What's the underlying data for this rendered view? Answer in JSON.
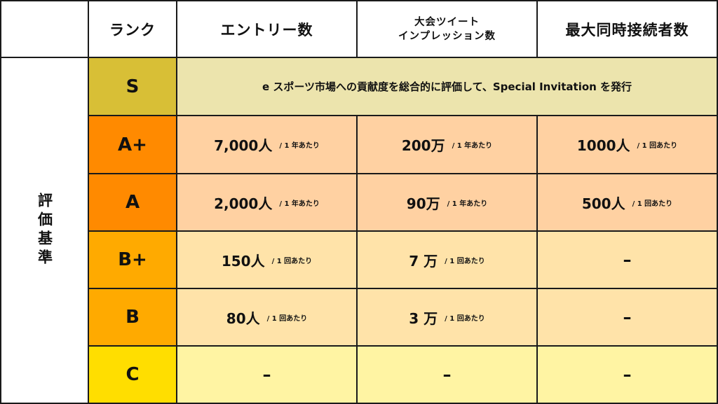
{
  "header": {
    "rank": "ランク",
    "entries": "エントリー数",
    "tweet_line1": "大会ツイート",
    "tweet_line2": "インプレッション数",
    "concurrent": "最大同時接続者数"
  },
  "side_label": "評価基準",
  "colors": {
    "s_rank": "#d8bf36",
    "s_desc": "#ece4ad",
    "a_rank": "#ff8a00",
    "a_cell": "#ffd1a2",
    "b_rank": "#ffaa00",
    "b_cell": "#ffe3a9",
    "c_rank": "#ffde00",
    "c_cell": "#fff4a3",
    "border": "#1a1a1a"
  },
  "rows": [
    {
      "rank": "S",
      "description": "e スポーツ市場への貢献度を総合的に評価して、Special Invitation を発行"
    },
    {
      "rank": "A+",
      "entries": {
        "value": "7,000人",
        "unit": "/ 1 年あたり"
      },
      "tweets": {
        "value": "200万",
        "unit": "/ 1 年あたり"
      },
      "concurrent": {
        "value": "1000人",
        "unit": "/ 1 回あたり"
      }
    },
    {
      "rank": "A",
      "entries": {
        "value": "2,000人",
        "unit": "/ 1 年あたり"
      },
      "tweets": {
        "value": "90万",
        "unit": "/ 1 年あたり"
      },
      "concurrent": {
        "value": "500人",
        "unit": "/ 1 回あたり"
      }
    },
    {
      "rank": "B+",
      "entries": {
        "value": "150人",
        "unit": "/ 1 回あたり"
      },
      "tweets": {
        "value": "7 万",
        "unit": "/ 1 回あたり"
      },
      "concurrent": {
        "value": "–"
      }
    },
    {
      "rank": "B",
      "entries": {
        "value": "80人",
        "unit": "/ 1 回あたり"
      },
      "tweets": {
        "value": "3 万",
        "unit": "/ 1 回あたり"
      },
      "concurrent": {
        "value": "–"
      }
    },
    {
      "rank": "C",
      "entries": {
        "value": "–"
      },
      "tweets": {
        "value": "–"
      },
      "concurrent": {
        "value": "–"
      }
    }
  ]
}
